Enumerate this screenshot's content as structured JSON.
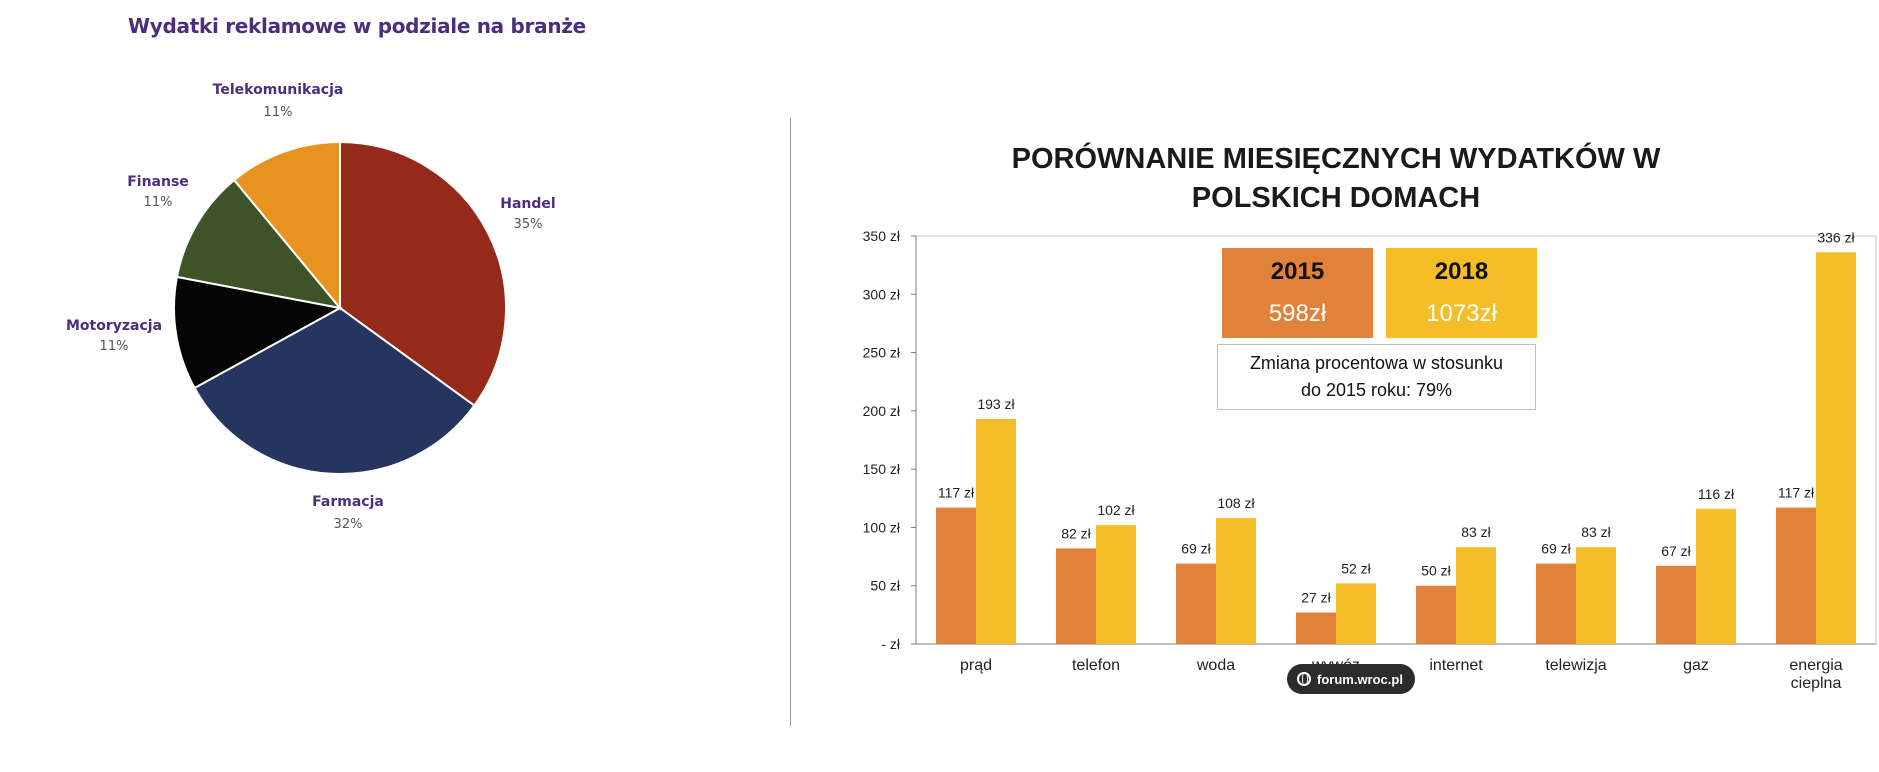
{
  "chart_data": [
    {
      "type": "pie",
      "title": "Wydatki reklamowe w podziale na branże",
      "slices": [
        {
          "label": "Handel",
          "value": 35,
          "display": "35%",
          "color": "#962a1a"
        },
        {
          "label": "Farmacja",
          "value": 32,
          "display": "32%",
          "color": "#25355f"
        },
        {
          "label": "Motoryzacja",
          "value": 11,
          "display": "11%",
          "color": "#050505"
        },
        {
          "label": "Finanse",
          "value": 11,
          "display": "11%",
          "color": "#3e5428"
        },
        {
          "label": "Telekomunikacja",
          "value": 11,
          "display": "11%",
          "color": "#e8921f"
        }
      ],
      "start": "12 o'clock, clockwise"
    },
    {
      "type": "bar",
      "title": "PORÓWNANIE MIESIĘCZNYCH WYDATKÓW W POLSKICH DOMACH",
      "categories": [
        "prąd",
        "telefon",
        "woda",
        "wywóz śmieci",
        "internet",
        "telewizja",
        "gaz",
        "energia cieplna"
      ],
      "series": [
        {
          "name": "2015",
          "color": "#e0823a",
          "values": [
            117,
            82,
            69,
            27,
            50,
            69,
            67,
            117
          ],
          "labels": [
            "117 zł",
            "82 zł",
            "69 zł",
            "27 zł",
            "50 zł",
            "69 zł",
            "67 zł",
            "117 zł"
          ]
        },
        {
          "name": "2018",
          "color": "#f5bd27",
          "values": [
            193,
            102,
            108,
            52,
            83,
            83,
            116,
            336
          ],
          "labels": [
            "193 zł",
            "102 zł",
            "108 zł",
            "52 zł",
            "83 zł",
            "83 zł",
            "116 zł",
            "336 zł"
          ]
        }
      ],
      "ylim": [
        0,
        350
      ],
      "yticks": [
        0,
        50,
        100,
        150,
        200,
        250,
        300,
        350
      ],
      "ytick_labels": [
        "- zł",
        "50 zł",
        "100 zł",
        "150 zł",
        "200 zł",
        "250 zł",
        "300 zł",
        "350 zł"
      ],
      "grid": false
    }
  ],
  "summary": {
    "year1": "2015",
    "amount1": "598zł",
    "year2": "2018",
    "amount2": "1073zł",
    "change_line1": "Zmiana procentowa w stosunku",
    "change_line2": "do 2015 roku: 79%"
  },
  "watermark": {
    "text": "forum.wroc.pl",
    "icon": "globe-icon"
  }
}
